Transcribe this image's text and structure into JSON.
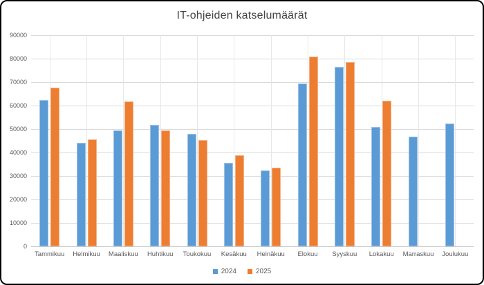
{
  "chart_data": {
    "type": "bar",
    "title": "IT-ohjeiden katselumäärät",
    "categories": [
      "Tammikuu",
      "Helmikuu",
      "Maaliskuu",
      "Huhtikuu",
      "Toukokuu",
      "Kesäkuu",
      "Heinäkuu",
      "Elokuu",
      "Syyskuu",
      "Lokakuu",
      "Marraskuu",
      "Joulukuu"
    ],
    "series": [
      {
        "name": "2024",
        "color": "#5B9BD5",
        "border_color": "#9DC3E6",
        "values": [
          62400,
          44200,
          49300,
          51700,
          48000,
          35600,
          32400,
          69500,
          76400,
          51000,
          46900,
          52500
        ]
      },
      {
        "name": "2025",
        "color": "#ED7D31",
        "border_color": "#F4B183",
        "values": [
          67800,
          45600,
          61700,
          49400,
          45400,
          38800,
          33400,
          80800,
          78500,
          62200,
          null,
          null
        ]
      }
    ],
    "ylim": [
      0,
      90000
    ],
    "ytick_step": 10000,
    "yticks": [
      "0",
      "10000",
      "20000",
      "30000",
      "40000",
      "50000",
      "60000",
      "70000",
      "80000",
      "90000"
    ],
    "grid": "horizontal-major",
    "legend_position": "bottom",
    "legend": [
      "2024",
      "2025"
    ]
  },
  "colors": {
    "background": "#FFFFFF",
    "frame_border": "#000000",
    "gridline": "#D9D9D9",
    "axis_line": "#C6C6C6",
    "text": "#595959",
    "title_text": "#444444"
  }
}
